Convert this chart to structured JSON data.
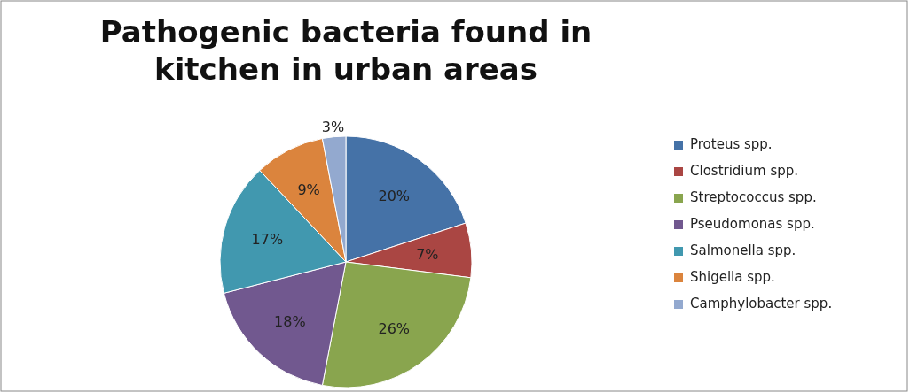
{
  "chart_data": {
    "type": "pie",
    "title": "Pathogenic bacteria found in kitchen in urban areas",
    "categories": [
      "Proteus spp.",
      "Clostridium spp.",
      "Streptococcus spp.",
      "Pseudomonas spp.",
      "Salmonella spp.",
      "Shigella spp.",
      "Camphylobacter spp."
    ],
    "values": [
      20,
      7,
      26,
      18,
      17,
      9,
      3
    ],
    "colors": [
      "#4572a7",
      "#aa4643",
      "#89a54e",
      "#71588f",
      "#4198af",
      "#db843d",
      "#93a9cf"
    ],
    "value_labels": [
      "20%",
      "7%",
      "26%",
      "18%",
      "17%",
      "9%",
      "3%"
    ],
    "legend": "right"
  }
}
